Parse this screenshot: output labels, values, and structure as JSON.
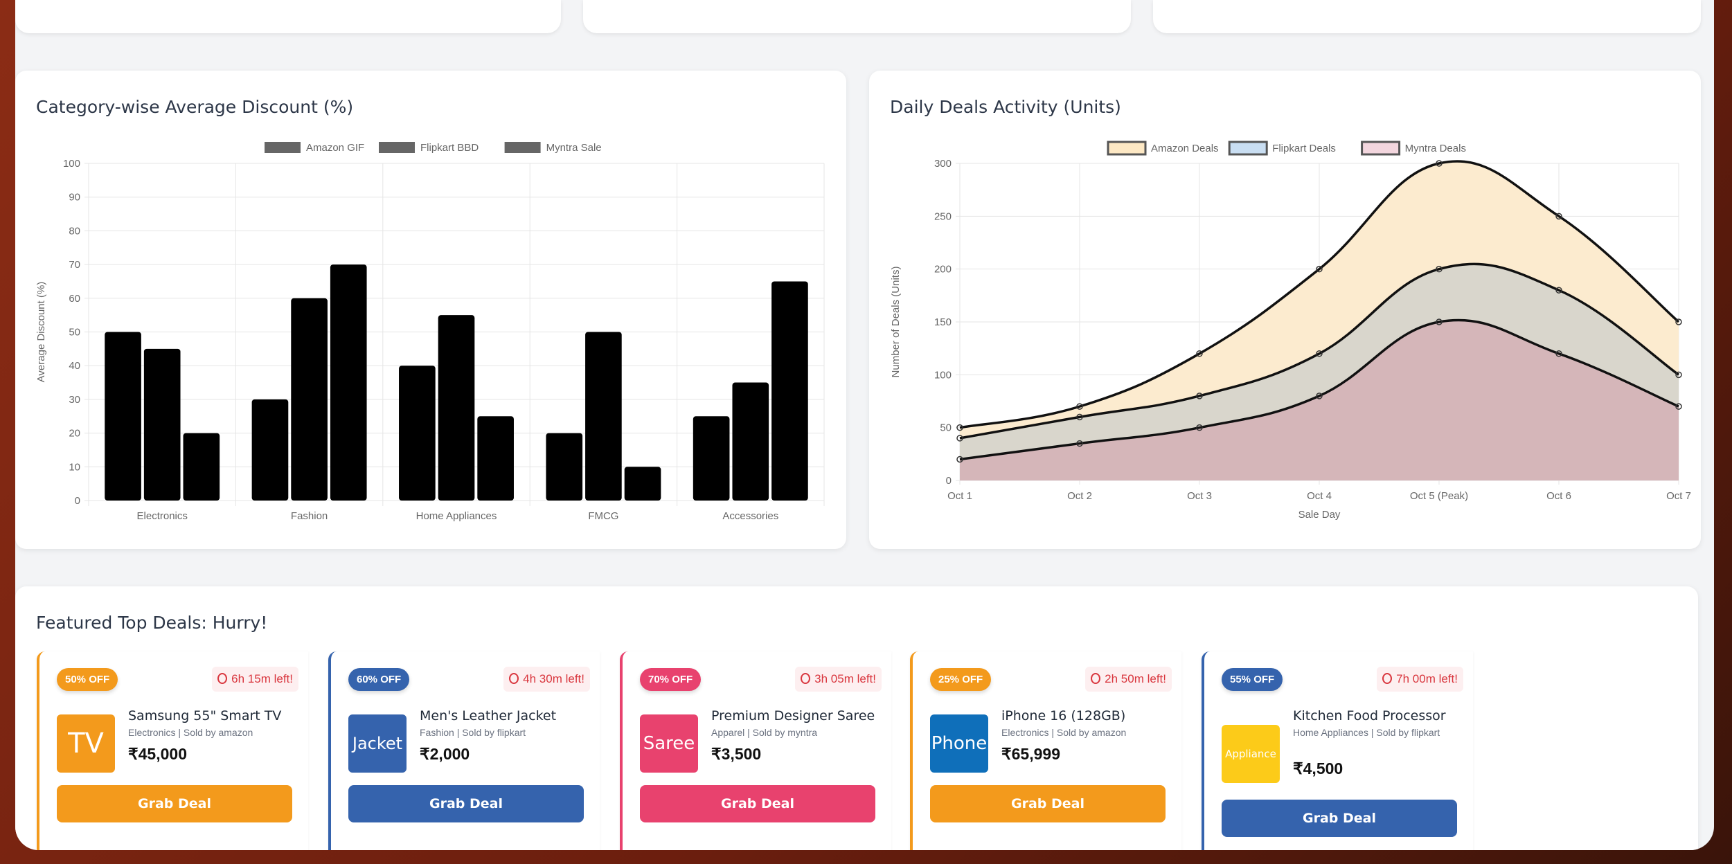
{
  "colors": {
    "amazon": "#f39a1c",
    "flipkart": "#3563ad",
    "myntra": "#e8426e",
    "phone": "#0f6fba",
    "appliance": "#fccb19"
  },
  "chart_data": [
    {
      "type": "bar",
      "title": "Category-wise Average Discount (%)",
      "xlabel": "",
      "ylabel": "Average Discount (%)",
      "ylim": [
        0,
        100
      ],
      "yticks": [
        0,
        10,
        20,
        30,
        40,
        50,
        60,
        70,
        80,
        90,
        100
      ],
      "categories": [
        "Electronics",
        "Fashion",
        "Home Appliances",
        "FMCG",
        "Accessories"
      ],
      "series": [
        {
          "name": "Amazon GIF",
          "values": [
            50,
            30,
            40,
            20,
            25
          ]
        },
        {
          "name": "Flipkart BBD",
          "values": [
            45,
            60,
            55,
            50,
            35
          ]
        },
        {
          "name": "Myntra Sale",
          "values": [
            20,
            70,
            25,
            10,
            65
          ]
        }
      ],
      "legend": "top",
      "grid": true
    },
    {
      "type": "area",
      "title": "Daily Deals Activity (Units)",
      "xlabel": "Sale Day",
      "ylabel": "Number of Deals (Units)",
      "ylim": [
        0,
        300
      ],
      "yticks": [
        0,
        50,
        100,
        150,
        200,
        250,
        300
      ],
      "x": [
        "Oct 1",
        "Oct 2",
        "Oct 3",
        "Oct 4",
        "Oct 5 (Peak)",
        "Oct 6",
        "Oct 7"
      ],
      "series": [
        {
          "name": "Amazon Deals",
          "values": [
            50,
            70,
            120,
            200,
            300,
            250,
            150
          ],
          "fill": "#fcebcf",
          "legend_fill": "#fde8c4"
        },
        {
          "name": "Flipkart Deals",
          "values": [
            40,
            60,
            80,
            120,
            200,
            180,
            100
          ],
          "fill": "#d9d6cc",
          "legend_fill": "#c9def2"
        },
        {
          "name": "Myntra Deals",
          "values": [
            20,
            35,
            50,
            80,
            150,
            120,
            70
          ],
          "fill": "#d5b6b9",
          "legend_fill": "#f3d6de"
        }
      ],
      "legend": "top",
      "grid": true
    }
  ],
  "featured": {
    "title": "Featured Top Deals: Hurry!",
    "button": "Grab Deal",
    "deals": [
      {
        "badge": "50% OFF",
        "timer": "6h 15m left!",
        "thumb": "TV",
        "name": "Samsung 55\" Smart TV",
        "meta": "Electronics | Sold by amazon",
        "price": "₹45,000",
        "color": "amazon"
      },
      {
        "badge": "60% OFF",
        "timer": "4h 30m left!",
        "thumb": "Jacket",
        "name": "Men's Leather Jacket",
        "meta": "Fashion | Sold by flipkart",
        "price": "₹2,000",
        "color": "flipkart"
      },
      {
        "badge": "70% OFF",
        "timer": "3h 05m left!",
        "thumb": "Saree",
        "name": "Premium Designer Saree",
        "meta": "Apparel | Sold by myntra",
        "price": "₹3,500",
        "color": "myntra"
      },
      {
        "badge": "25% OFF",
        "timer": "2h 50m left!",
        "thumb": "Phone",
        "name": "iPhone 16 (128GB)",
        "meta": "Electronics | Sold by amazon",
        "price": "₹65,999",
        "color": "amazon"
      },
      {
        "badge": "55% OFF",
        "timer": "7h 00m left!",
        "thumb": "Appliance",
        "name": "Kitchen Food Processor",
        "meta": "Home Appliances | Sold by flipkart",
        "price": "₹4,500",
        "color": "flipkart"
      }
    ]
  }
}
